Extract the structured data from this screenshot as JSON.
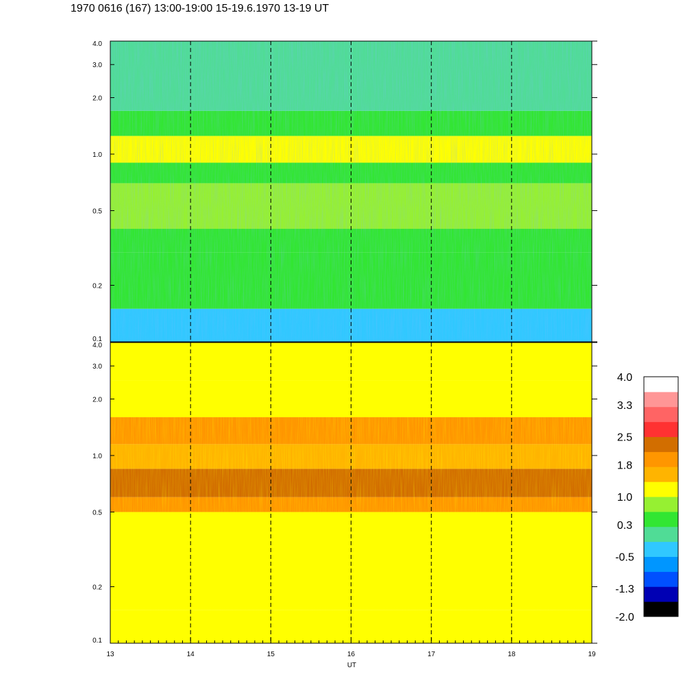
{
  "header": {
    "title": "1970 0616 (167) 13:00-19:00 15-19.6.1970  13-19 UT"
  },
  "chart_data": [
    {
      "type": "heatmap",
      "panel": "upper",
      "x_range": [
        13,
        19
      ],
      "y_range": [
        0.1,
        4.0
      ],
      "y_scale": "log",
      "y_ticks": [
        "0.1",
        "0.2",
        "0.5",
        "1.0",
        "2.0",
        "3.0",
        "4.0"
      ],
      "y_tick_values": [
        0.1,
        0.2,
        0.5,
        1.0,
        2.0,
        3.0,
        4.0
      ],
      "dashed_verticals": [
        14,
        15,
        16,
        17,
        18
      ],
      "bands": [
        {
          "from": 0.1,
          "to": 0.15,
          "level": -0.3
        },
        {
          "from": 0.15,
          "to": 0.3,
          "level": 0.3
        },
        {
          "from": 0.3,
          "to": 0.4,
          "level": 0.5
        },
        {
          "from": 0.4,
          "to": 0.7,
          "level": 0.8
        },
        {
          "from": 0.7,
          "to": 0.9,
          "level": 0.6
        },
        {
          "from": 0.9,
          "to": 1.25,
          "level": 1.0
        },
        {
          "from": 1.25,
          "to": 1.7,
          "level": 0.4
        },
        {
          "from": 1.7,
          "to": 4.0,
          "level": 0.1
        }
      ]
    },
    {
      "type": "heatmap",
      "panel": "lower",
      "x_range": [
        13,
        19
      ],
      "y_range": [
        0.1,
        4.0
      ],
      "y_scale": "log",
      "y_ticks": [
        "0.1",
        "0.2",
        "0.5",
        "1.0",
        "2.0",
        "3.0",
        "4.0"
      ],
      "y_tick_values": [
        0.1,
        0.2,
        0.5,
        1.0,
        2.0,
        3.0,
        4.0
      ],
      "x_ticks": [
        "13",
        "14",
        "15",
        "16",
        "17",
        "18",
        "19"
      ],
      "x_tick_values": [
        13,
        14,
        15,
        16,
        17,
        18,
        19
      ],
      "xlabel": "UT",
      "dashed_verticals": [
        14,
        15,
        16,
        17,
        18
      ],
      "bands": [
        {
          "from": 0.1,
          "to": 0.15,
          "level": 1.0
        },
        {
          "from": 0.15,
          "to": 0.5,
          "level": 1.3
        },
        {
          "from": 0.5,
          "to": 0.6,
          "level": 1.8
        },
        {
          "from": 0.6,
          "to": 0.85,
          "level": 2.2
        },
        {
          "from": 0.85,
          "to": 1.15,
          "level": 1.4
        },
        {
          "from": 1.15,
          "to": 1.6,
          "level": 1.8
        },
        {
          "from": 1.6,
          "to": 2.5,
          "level": 1.3
        },
        {
          "from": 2.5,
          "to": 4.0,
          "level": 1.1
        }
      ]
    }
  ],
  "colorbar": {
    "labels": [
      "4.0",
      "3.3",
      "2.5",
      "1.8",
      "1.0",
      "0.3",
      "-0.5",
      "-1.3",
      "-2.0"
    ],
    "label_values": [
      4.0,
      3.3,
      2.5,
      1.8,
      1.0,
      0.3,
      -0.5,
      -1.3,
      -2.0
    ],
    "range": [
      -2.0,
      4.0
    ],
    "colors": [
      "#000000",
      "#0000b4",
      "#0050ff",
      "#0096ff",
      "#30c8ff",
      "#50dc96",
      "#32e632",
      "#96f032",
      "#ffff00",
      "#ffb400",
      "#ff9600",
      "#d26e00",
      "#ff3232",
      "#ff6464",
      "#ff9696",
      "#ffffff"
    ]
  }
}
